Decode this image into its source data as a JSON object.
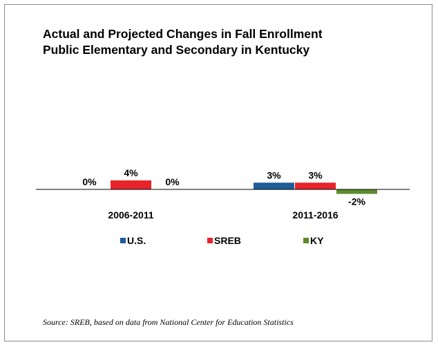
{
  "chart_data": {
    "type": "bar",
    "title": "Actual and Projected Changes in Fall Enrollment",
    "subtitle": "Public Elementary and Secondary in Kentucky",
    "categories": [
      "2006-2011",
      "2011-2016"
    ],
    "series": [
      {
        "name": "U.S.",
        "color": "#1f5c99",
        "values": [
          0,
          3
        ],
        "labels": [
          "0%",
          "3%"
        ]
      },
      {
        "name": "SREB",
        "color": "#e8232a",
        "values": [
          4,
          3
        ],
        "labels": [
          "4%",
          "3%"
        ]
      },
      {
        "name": "KY",
        "color": "#5e8a2e",
        "values": [
          0,
          -2
        ],
        "labels": [
          "0%",
          "-2%"
        ]
      }
    ],
    "units": "%",
    "grid": false,
    "legend_position": "bottom"
  },
  "source": "Source: SREB, based on data from National Center for Education Statistics"
}
